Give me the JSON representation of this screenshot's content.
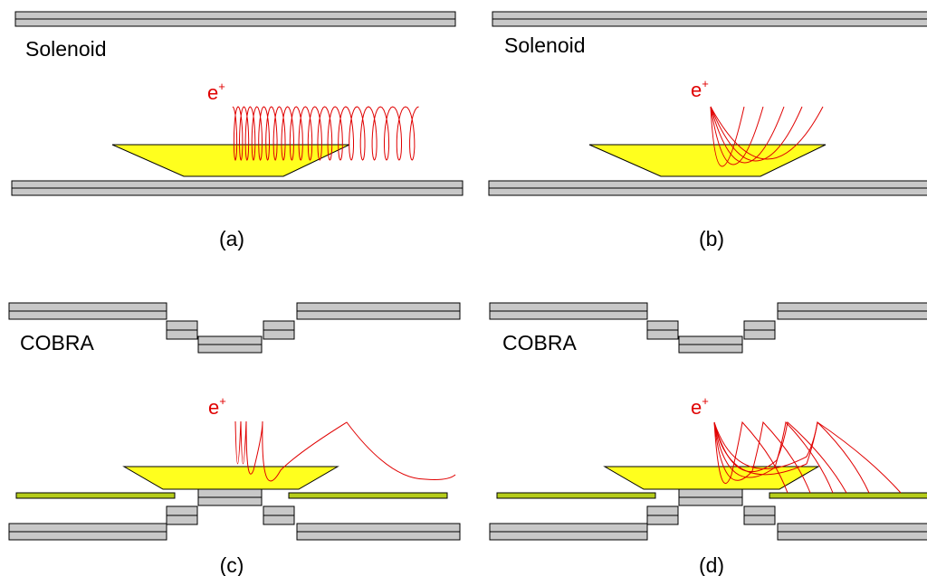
{
  "panels": [
    {
      "magnet": "Solenoid",
      "particle": "e",
      "charge": "+",
      "caption": "(a)"
    },
    {
      "magnet": "Solenoid",
      "particle": "e",
      "charge": "+",
      "caption": "(b)"
    },
    {
      "magnet": "COBRA",
      "particle": "e",
      "charge": "+",
      "caption": "(c)"
    },
    {
      "magnet": "COBRA",
      "particle": "e",
      "charge": "+",
      "caption": "(d)"
    }
  ]
}
